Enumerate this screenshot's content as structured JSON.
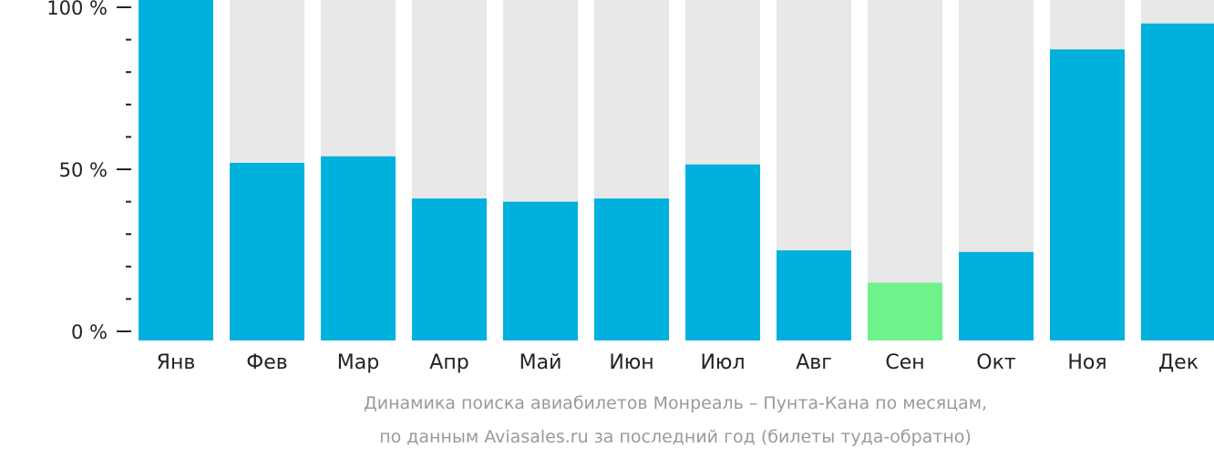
{
  "chart_data": {
    "type": "bar",
    "categories": [
      "Янв",
      "Фев",
      "Мар",
      "Апр",
      "Май",
      "Июн",
      "Июл",
      "Авг",
      "Сен",
      "Окт",
      "Ноя",
      "Дек"
    ],
    "series": [
      {
        "values": [
          100,
          52,
          54,
          41,
          40,
          41,
          51.5,
          25,
          15,
          24.5,
          87,
          95
        ]
      }
    ],
    "highlight_category": "Сен",
    "ylim": [
      0,
      100
    ],
    "yticks": [
      {
        "value": 0,
        "label": "0 %"
      },
      {
        "value": 50,
        "label": "50 %"
      },
      {
        "value": 100,
        "label": "100 %"
      }
    ],
    "minor_tick_step": 10,
    "title": "",
    "xlabel": "",
    "ylabel": "",
    "grid": false,
    "colors": {
      "bar": "#00b0dd",
      "highlight": "#6ef28a",
      "background_bar": "#e8e8e8",
      "axis": "#222222"
    }
  },
  "caption": {
    "line1": "Динамика поиска авиабилетов Монреаль – Пунта-Кана по месяцам,",
    "line2": "по данным Aviasales.ru за последний год (билеты туда-обратно)"
  }
}
